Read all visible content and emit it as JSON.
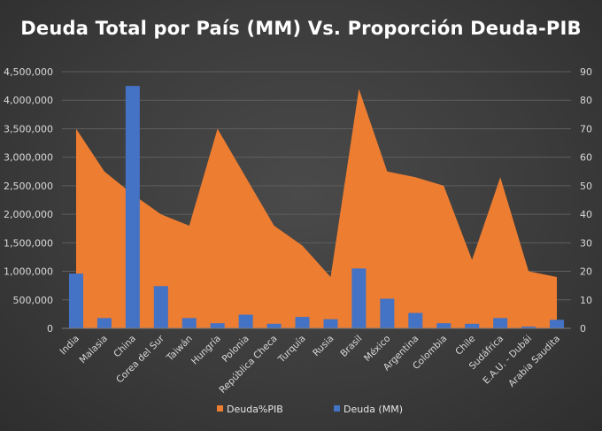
{
  "chart_data": {
    "type": "bar",
    "title": "Deuda Total por País (MM) Vs. Proporción Deuda-PIB",
    "categories": [
      "India",
      "Malasia",
      "China",
      "Corea del Sur",
      "Taiwán",
      "Hungría",
      "Polonia",
      "República Checa",
      "Turquía",
      "Rusia",
      "Brasil",
      "México",
      "Argentina",
      "Colombia",
      "Chile",
      "Sudáfrica",
      "E.A.U. - Dubái",
      "Arabia Saudita"
    ],
    "series": [
      {
        "name": "Deuda%PIB",
        "type": "area",
        "axis": "right",
        "color": "#ed7d31",
        "values": [
          70,
          55,
          47,
          40,
          36,
          70,
          53,
          36,
          29,
          18,
          84,
          55,
          53,
          50,
          24,
          53,
          20,
          18
        ]
      },
      {
        "name": "Deuda (MM)",
        "type": "bar",
        "axis": "left",
        "color": "#4472c4",
        "values": [
          960000,
          180000,
          4250000,
          740000,
          180000,
          90000,
          240000,
          80000,
          200000,
          160000,
          1050000,
          520000,
          270000,
          90000,
          80000,
          180000,
          30000,
          150000
        ]
      }
    ],
    "y_left": {
      "min": 0,
      "max": 4500000,
      "step": 500000,
      "tick_labels": [
        "0",
        "500,000",
        "1,000,000",
        "1,500,000",
        "2,000,000",
        "2,500,000",
        "3,000,000",
        "3,500,000",
        "4,000,000",
        "4,500,000"
      ]
    },
    "y_right": {
      "min": 0,
      "max": 90,
      "step": 10,
      "tick_labels": [
        "0",
        "10",
        "20",
        "30",
        "40",
        "50",
        "60",
        "70",
        "80",
        "90"
      ]
    },
    "grid": true,
    "legend": {
      "placement": "bottom",
      "items": [
        "Deuda%PIB",
        "Deuda (MM)"
      ]
    }
  }
}
